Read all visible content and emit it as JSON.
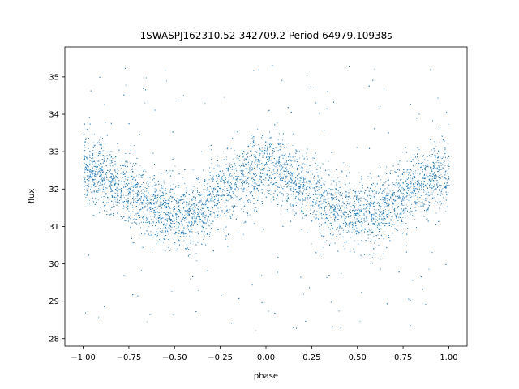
{
  "chart_data": {
    "type": "scatter",
    "title": "1SWASPJ162310.52-342709.2 Period 64979.10938s",
    "xlabel": "phase",
    "ylabel": "flux",
    "xlim": [
      -1.1,
      1.1
    ],
    "ylim": [
      27.8,
      35.8
    ],
    "xticks": [
      -1.0,
      -0.75,
      -0.5,
      -0.25,
      0.0,
      0.25,
      0.5,
      0.75,
      1.0
    ],
    "xtick_labels": [
      "−1.00",
      "−0.75",
      "−0.50",
      "−0.25",
      "0.00",
      "0.25",
      "0.50",
      "0.75",
      "1.00"
    ],
    "yticks": [
      28,
      29,
      30,
      31,
      32,
      33,
      34,
      35
    ],
    "ytick_labels": [
      "28",
      "29",
      "30",
      "31",
      "32",
      "33",
      "34",
      "35"
    ],
    "grid": false,
    "point_color": "#1f77b4",
    "series": [
      {
        "x": [
          -1.0,
          -0.9,
          -0.8,
          -0.7,
          -0.6,
          -0.5,
          -0.45,
          -0.4,
          -0.3,
          -0.2,
          -0.1,
          0.0,
          0.1,
          0.2,
          0.3,
          0.4,
          0.5,
          0.55,
          0.6,
          0.7,
          0.8,
          0.9,
          1.0
        ],
        "y": [
          32.5,
          32.4,
          32.1,
          31.8,
          31.5,
          31.3,
          31.3,
          31.3,
          31.7,
          32.1,
          32.4,
          32.6,
          32.4,
          32.1,
          31.8,
          31.5,
          31.3,
          31.3,
          31.3,
          31.7,
          32.0,
          32.3,
          32.5
        ],
        "scatter_sigma": 0.45,
        "outlier_range": [
          28.2,
          35.4
        ]
      }
    ]
  }
}
